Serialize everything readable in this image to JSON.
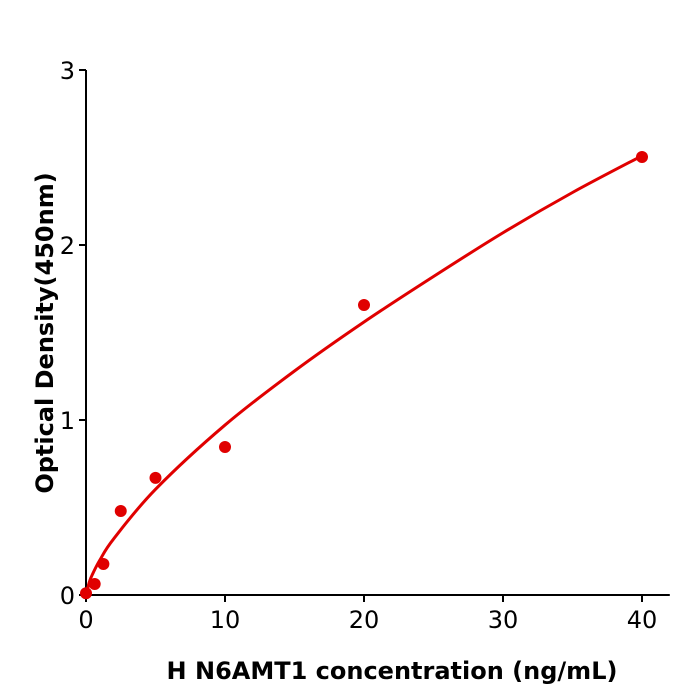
{
  "chart_data": {
    "type": "scatter",
    "title": "",
    "xlabel": "H  N6AMT1 concentration (ng/mL)",
    "ylabel": "Optical Density(450nm)",
    "xlim": [
      0,
      42
    ],
    "ylim": [
      0,
      3
    ],
    "xticks": [
      "0",
      "10",
      "20",
      "30",
      "40"
    ],
    "yticks": [
      "0",
      "1",
      "2",
      "3"
    ],
    "grid": false,
    "color": "#e00000",
    "points": {
      "x": [
        0,
        0.625,
        1.25,
        2.5,
        5,
        10,
        20,
        40
      ],
      "y": [
        0.01,
        0.063,
        0.177,
        0.48,
        0.669,
        0.846,
        1.657,
        2.503
      ]
    },
    "fit_curve": {
      "x": [
        0,
        0.25,
        0.5,
        1,
        2,
        5,
        10,
        15,
        20,
        25,
        30,
        35,
        40
      ],
      "y": [
        0,
        0.077,
        0.124,
        0.2,
        0.322,
        0.604,
        0.971,
        1.28,
        1.56,
        1.82,
        2.07,
        2.3,
        2.51
      ]
    }
  }
}
